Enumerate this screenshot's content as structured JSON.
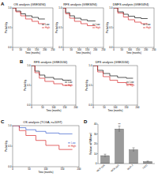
{
  "panel_labels": [
    "A",
    "B",
    "C",
    "D"
  ],
  "chart_data": [
    {
      "type": "line",
      "title": "OS analysis (GSE3494)",
      "x_label": "Time (months)",
      "y_label": "Probability",
      "x": [
        0,
        20,
        20,
        50,
        50,
        80,
        80,
        120,
        120,
        160,
        160,
        200
      ],
      "series": [
        {
          "name": "Low",
          "color": "#111111",
          "values": [
            1,
            1,
            0.92,
            0.92,
            0.85,
            0.85,
            0.8,
            0.8,
            0.76,
            0.76,
            0.72,
            0.72
          ]
        },
        {
          "name": "High",
          "color": "#d62728",
          "values": [
            1,
            1,
            0.9,
            0.9,
            0.8,
            0.8,
            0.72,
            0.72,
            0.66,
            0.66,
            0.6,
            0.6
          ]
        }
      ],
      "xlim": [
        0,
        250
      ],
      "xticks": [
        0,
        50,
        100,
        150,
        200,
        250
      ],
      "ylim": [
        0,
        1
      ],
      "yticks": [
        {
          "value": 0,
          "label": "0.0"
        },
        {
          "value": 0.5,
          "label": "0.5"
        },
        {
          "value": 1,
          "label": "1.0"
        }
      ],
      "legend": "top-right"
    },
    {
      "type": "line",
      "title": "RFS analysis (GSE3494)",
      "x_label": "Time (months)",
      "y_label": "Probability",
      "x": [
        0,
        15,
        15,
        40,
        40,
        70,
        70,
        110,
        110,
        150,
        150,
        200
      ],
      "series": [
        {
          "name": "Low",
          "color": "#111111",
          "values": [
            1,
            1,
            0.88,
            0.88,
            0.8,
            0.8,
            0.74,
            0.74,
            0.7,
            0.7,
            0.67,
            0.67
          ]
        },
        {
          "name": "High",
          "color": "#d62728",
          "values": [
            1,
            1,
            0.85,
            0.85,
            0.74,
            0.74,
            0.66,
            0.66,
            0.6,
            0.6,
            0.55,
            0.55
          ]
        }
      ],
      "xlim": [
        0,
        250
      ],
      "xticks": [
        0,
        50,
        100,
        150,
        200,
        250
      ],
      "ylim": [
        0,
        1
      ],
      "yticks": [
        {
          "value": 0,
          "label": "0.0"
        },
        {
          "value": 0.5,
          "label": "0.5"
        },
        {
          "value": 1,
          "label": "1.0"
        }
      ],
      "legend": "top-right"
    },
    {
      "type": "line",
      "title": "DMFS analysis (GSE3494)",
      "x_label": "Time (months)",
      "y_label": "Probability",
      "x": [
        0,
        25,
        25,
        60,
        60,
        90,
        90,
        130,
        130,
        170,
        170,
        210
      ],
      "series": [
        {
          "name": "Low",
          "color": "#111111",
          "values": [
            1,
            1,
            0.9,
            0.9,
            0.84,
            0.84,
            0.79,
            0.79,
            0.75,
            0.75,
            0.73,
            0.73
          ]
        },
        {
          "name": "High",
          "color": "#d62728",
          "values": [
            1,
            1,
            0.87,
            0.87,
            0.77,
            0.77,
            0.7,
            0.7,
            0.64,
            0.64,
            0.6,
            0.6
          ]
        }
      ],
      "xlim": [
        0,
        250
      ],
      "xticks": [
        0,
        50,
        100,
        150,
        200,
        250
      ],
      "ylim": [
        0,
        1
      ],
      "yticks": [
        {
          "value": 0,
          "label": "0.0"
        },
        {
          "value": 0.5,
          "label": "0.5"
        },
        {
          "value": 1,
          "label": "1.0"
        }
      ],
      "legend": "top-right"
    },
    {
      "type": "line",
      "title": "RFS analysis (GSE2034)",
      "x_label": "Time (months)",
      "y_label": "Probability",
      "x": [
        0,
        15,
        15,
        35,
        35,
        60,
        60,
        100,
        100,
        140,
        140,
        180
      ],
      "series": [
        {
          "name": "Low",
          "color": "#111111",
          "values": [
            1,
            1,
            0.86,
            0.86,
            0.76,
            0.76,
            0.7,
            0.7,
            0.66,
            0.66,
            0.63,
            0.63
          ]
        },
        {
          "name": "High",
          "color": "#d62728",
          "values": [
            1,
            1,
            0.82,
            0.82,
            0.68,
            0.68,
            0.6,
            0.6,
            0.54,
            0.54,
            0.5,
            0.5
          ]
        }
      ],
      "xlim": [
        0,
        200
      ],
      "xticks": [
        0,
        50,
        100,
        150,
        200
      ],
      "ylim": [
        0,
        1
      ],
      "yticks": [
        {
          "value": 0,
          "label": "0.0"
        },
        {
          "value": 0.5,
          "label": "0.5"
        },
        {
          "value": 1,
          "label": "1.0"
        }
      ],
      "legend": "top-right"
    },
    {
      "type": "line",
      "title": "DFS analysis (GSE2034)",
      "x_label": "Time (months)",
      "y_label": "Probability",
      "x": [
        0,
        20,
        20,
        45,
        45,
        75,
        75,
        110,
        110,
        150,
        150,
        180
      ],
      "series": [
        {
          "name": "Low",
          "color": "#111111",
          "values": [
            1,
            1,
            0.88,
            0.88,
            0.8,
            0.8,
            0.74,
            0.74,
            0.7,
            0.7,
            0.68,
            0.68
          ]
        },
        {
          "name": "High",
          "color": "#d62728",
          "values": [
            1,
            1,
            0.84,
            0.84,
            0.72,
            0.72,
            0.63,
            0.63,
            0.57,
            0.57,
            0.53,
            0.53
          ]
        }
      ],
      "xlim": [
        0,
        200
      ],
      "xticks": [
        0,
        50,
        100,
        150,
        200
      ],
      "ylim": [
        0,
        1
      ],
      "yticks": [
        {
          "value": 0,
          "label": "0.0"
        },
        {
          "value": 0.5,
          "label": "0.5"
        },
        {
          "value": 1,
          "label": "1.0"
        }
      ],
      "legend": "top-right"
    },
    {
      "type": "line",
      "title": "OS analysis (TCGA, n=1097)",
      "x_label": "Time (months)",
      "y_label": "Probability",
      "x": [
        0,
        20,
        20,
        40,
        40,
        70,
        70,
        100,
        100,
        140,
        140,
        180
      ],
      "series": [
        {
          "name": "Low",
          "color": "#3a5fcd",
          "values": [
            1,
            1,
            0.95,
            0.95,
            0.9,
            0.9,
            0.86,
            0.86,
            0.82,
            0.82,
            0.8,
            0.8
          ]
        },
        {
          "name": "High",
          "color": "#d62728",
          "values": [
            1,
            1,
            0.88,
            0.88,
            0.76,
            0.76,
            0.64,
            0.64,
            0.52,
            0.52,
            0.42,
            0.42
          ]
        }
      ],
      "xlim": [
        0,
        200
      ],
      "xticks": [
        0,
        50,
        100,
        150,
        200
      ],
      "ylim": [
        0,
        1
      ],
      "yticks": [
        {
          "value": 0,
          "label": "0.0"
        },
        {
          "value": 0.5,
          "label": "0.5"
        },
        {
          "value": 1,
          "label": "1.0"
        }
      ],
      "legend": "top-right"
    },
    {
      "type": "bar",
      "y_label": "Relative mRNA level",
      "categories": [
        "MCF-10A",
        "MDA-231",
        "MCF-7",
        "T47D"
      ],
      "values": [
        8,
        35,
        14,
        2
      ],
      "errors": [
        1.5,
        3,
        2,
        0.5
      ],
      "color": "#9a9a9a",
      "ylim": [
        0,
        40
      ],
      "yticks": [
        0,
        10,
        20,
        30,
        40
      ],
      "annotations": [
        "**"
      ]
    }
  ]
}
